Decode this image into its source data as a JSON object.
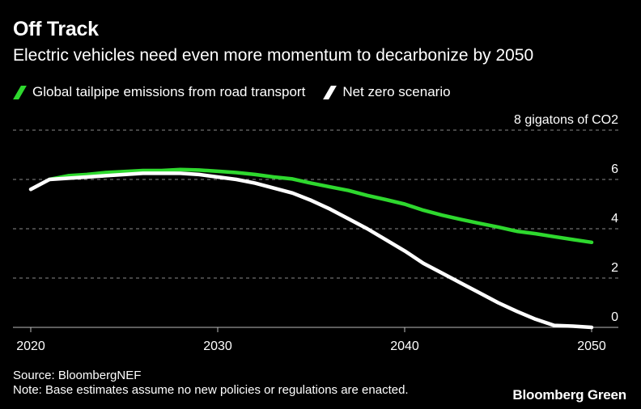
{
  "title": "Off Track",
  "subtitle": "Electric vehicles need even more momentum to decarbonize by 2050",
  "legend": [
    {
      "label": "Global tailpipe emissions from road transport",
      "color": "#2ed82e"
    },
    {
      "label": "Net zero scenario",
      "color": "#ffffff"
    }
  ],
  "footer": {
    "source": "Source: BloombergNEF",
    "note": "Note: Base estimates assume no new policies or regulations are enacted.",
    "brand": "Bloomberg Green"
  },
  "chart_data": {
    "type": "line",
    "ylabel": "8 gigatons of CO2",
    "ylim": [
      0,
      8
    ],
    "xlim": [
      2020,
      2050
    ],
    "y_ticks": [
      0,
      2,
      4,
      6,
      8
    ],
    "y_tick_labels": [
      "0",
      "2",
      "4",
      "6",
      "8 gigatons of CO2"
    ],
    "x_ticks": [
      2020,
      2030,
      2040,
      2050
    ],
    "x_tick_labels": [
      "2020",
      "2030",
      "2040",
      "2050"
    ],
    "grid": "dashed horizontal",
    "series": [
      {
        "name": "Global tailpipe emissions from road transport",
        "color": "#2ed82e",
        "x": [
          2021,
          2022,
          2023,
          2024,
          2025,
          2026,
          2027,
          2028,
          2029,
          2030,
          2031,
          2032,
          2033,
          2034,
          2035,
          2036,
          2037,
          2038,
          2039,
          2040,
          2041,
          2042,
          2043,
          2044,
          2045,
          2046,
          2047,
          2048,
          2049,
          2050
        ],
        "y": [
          6.0,
          6.15,
          6.2,
          6.28,
          6.32,
          6.36,
          6.36,
          6.4,
          6.38,
          6.33,
          6.28,
          6.2,
          6.1,
          6.02,
          5.85,
          5.7,
          5.55,
          5.35,
          5.18,
          5.0,
          4.75,
          4.55,
          4.38,
          4.22,
          4.07,
          3.9,
          3.8,
          3.68,
          3.56,
          3.45
        ]
      },
      {
        "name": "Net zero scenario",
        "color": "#ffffff",
        "x": [
          2020,
          2021,
          2022,
          2023,
          2024,
          2025,
          2026,
          2027,
          2028,
          2029,
          2030,
          2031,
          2032,
          2033,
          2034,
          2035,
          2036,
          2037,
          2038,
          2039,
          2040,
          2041,
          2042,
          2043,
          2044,
          2045,
          2046,
          2047,
          2048,
          2049,
          2050
        ],
        "y": [
          5.6,
          6.0,
          6.05,
          6.1,
          6.15,
          6.2,
          6.25,
          6.25,
          6.25,
          6.2,
          6.1,
          6.0,
          5.85,
          5.65,
          5.45,
          5.15,
          4.8,
          4.4,
          4.0,
          3.55,
          3.1,
          2.6,
          2.2,
          1.8,
          1.4,
          1.0,
          0.65,
          0.33,
          0.08,
          0.05,
          0.0
        ]
      }
    ]
  }
}
